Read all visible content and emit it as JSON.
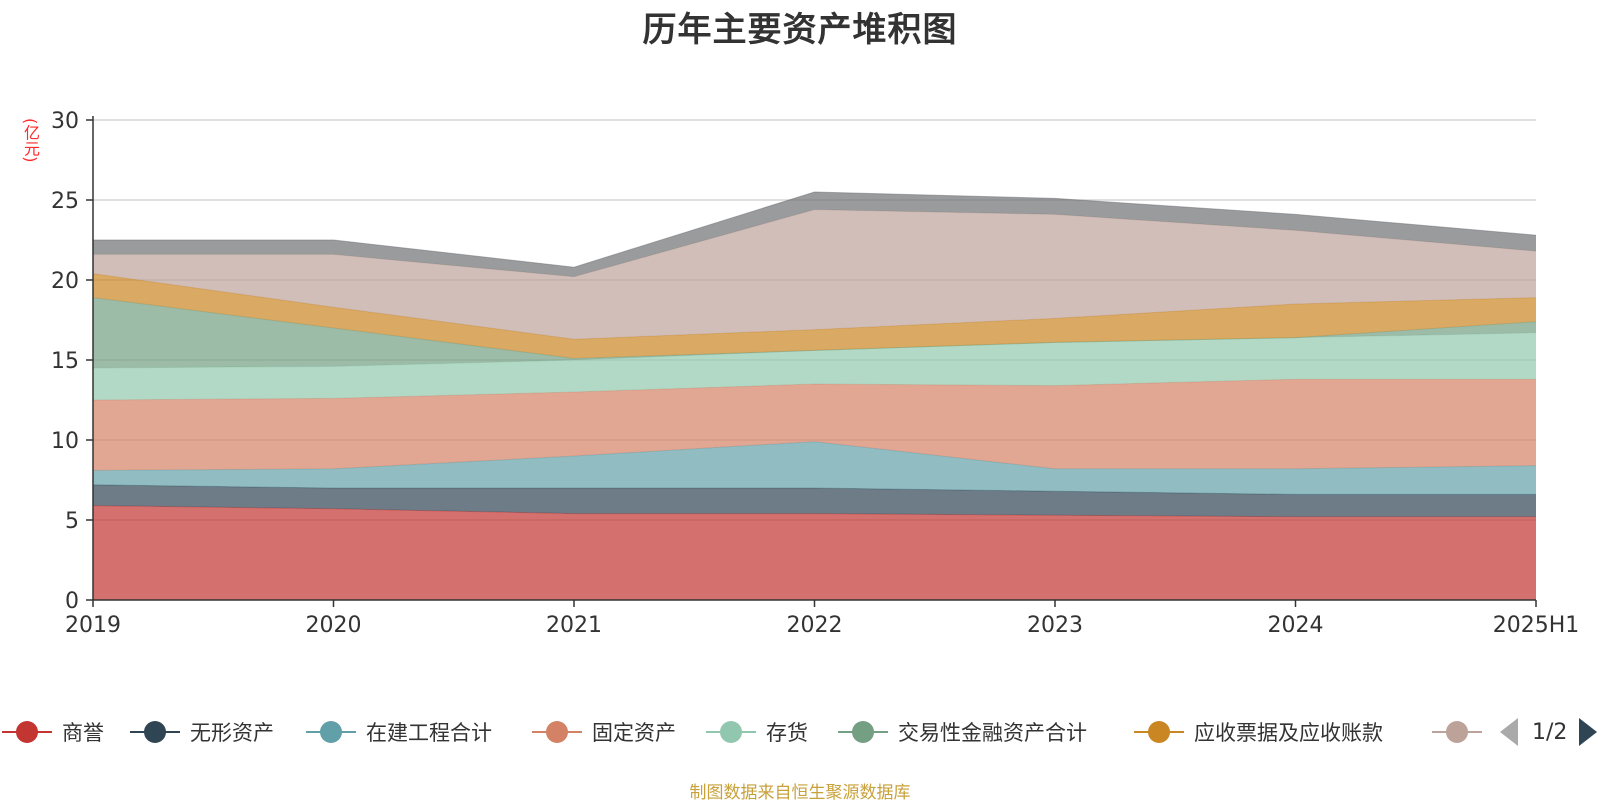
{
  "title": "历年主要资产堆积图",
  "source_note": "制图数据来自恒生聚源数据库",
  "pager": {
    "text": "1/2"
  },
  "chart_data": {
    "type": "area",
    "stacked": true,
    "title": "历年主要资产堆积图",
    "ylabel": "(亿元)",
    "xlabel": "",
    "x": [
      "2019",
      "2020",
      "2021",
      "2022",
      "2023",
      "2024",
      "2025H1"
    ],
    "ylim": [
      0,
      30
    ],
    "yticks": [
      0,
      5,
      10,
      15,
      20,
      25,
      30
    ],
    "grid": true,
    "legend_position": "bottom",
    "series": [
      {
        "name": "商誉",
        "color": "#c23531",
        "values": [
          5.9,
          5.7,
          5.4,
          5.4,
          5.3,
          5.2,
          5.2
        ]
      },
      {
        "name": "无形资产",
        "color": "#2f4554",
        "values": [
          1.3,
          1.3,
          1.6,
          1.6,
          1.5,
          1.4,
          1.4
        ]
      },
      {
        "name": "在建工程合计",
        "color": "#61a0a8",
        "values": [
          0.9,
          1.2,
          2.0,
          2.9,
          1.4,
          1.6,
          1.8
        ]
      },
      {
        "name": "固定资产",
        "color": "#d48265",
        "values": [
          4.4,
          4.4,
          4.0,
          3.6,
          5.2,
          5.6,
          5.4
        ]
      },
      {
        "name": "存货",
        "color": "#91c7ae",
        "values": [
          2.0,
          2.0,
          2.0,
          2.1,
          2.7,
          2.6,
          2.9
        ]
      },
      {
        "name": "交易性金融资产合计",
        "color": "#749f83",
        "values": [
          4.4,
          2.4,
          0.1,
          0.0,
          0.0,
          0.0,
          0.7
        ]
      },
      {
        "name": "应收票据及应收账款",
        "color": "#ca8622",
        "values": [
          1.5,
          1.3,
          1.2,
          1.3,
          1.5,
          2.1,
          1.5
        ]
      },
      {
        "name": "",
        "color": "#bda29a",
        "values": [
          1.2,
          3.3,
          3.9,
          7.5,
          6.5,
          4.6,
          2.9
        ]
      },
      {
        "name": "",
        "color": "#6e7074",
        "values": [
          0.9,
          0.9,
          0.6,
          1.1,
          1.0,
          1.0,
          1.0
        ]
      }
    ]
  }
}
